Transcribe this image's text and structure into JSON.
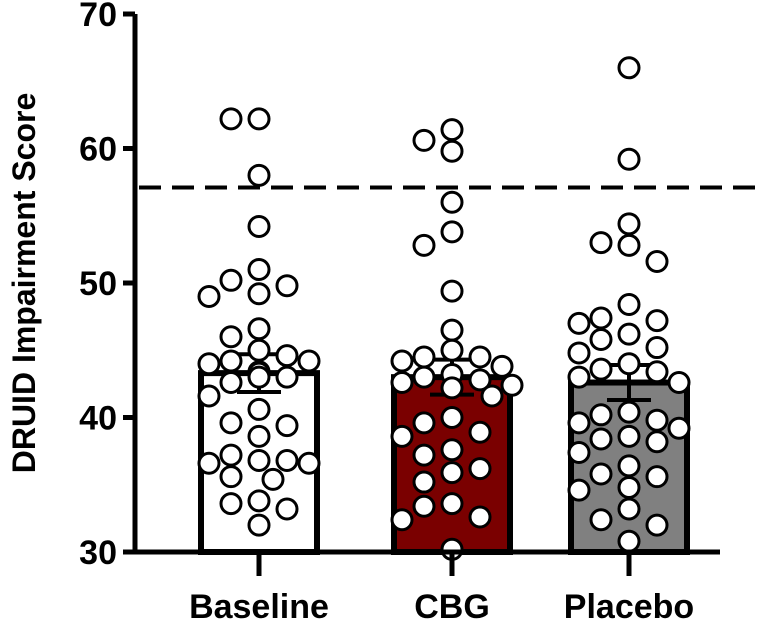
{
  "chart_data": {
    "type": "bar",
    "ylabel": "DRUID Impairment Score",
    "ylim": [
      30,
      70
    ],
    "yticks": [
      30,
      40,
      50,
      60,
      70
    ],
    "categories": [
      "Baseline",
      "CBG",
      "Placebo"
    ],
    "values": [
      43.3,
      43.0,
      42.6
    ],
    "error": [
      1.4,
      1.3,
      1.3
    ],
    "bar_colors": [
      "#ffffff",
      "#7a0000",
      "#808080"
    ],
    "reference_line": 57.1,
    "points": [
      [
        62.2,
        62.2,
        58.0,
        54.2,
        51.0,
        50.2,
        49.8,
        49.2,
        49.0,
        46.6,
        46.0,
        45.0,
        44.6,
        44.2,
        44.0,
        44.2,
        43.4,
        43.3,
        43.0,
        43.0,
        42.6,
        41.6,
        40.6,
        39.6,
        39.4,
        38.6,
        37.2,
        36.8,
        36.8,
        36.6,
        36.6,
        35.6,
        35.4,
        33.8,
        33.6,
        33.2,
        32.0
      ],
      [
        61.4,
        60.6,
        59.8,
        56.0,
        53.8,
        52.8,
        49.4,
        46.5,
        45.0,
        44.5,
        44.5,
        44.2,
        43.8,
        43.2,
        43.0,
        42.8,
        42.6,
        42.4,
        42.2,
        41.6,
        40.0,
        39.6,
        38.9,
        38.6,
        37.6,
        37.2,
        36.2,
        35.9,
        35.2,
        33.6,
        33.4,
        32.6,
        32.4,
        30.2
      ],
      [
        66.0,
        59.2,
        54.4,
        53.0,
        52.8,
        51.6,
        48.4,
        47.4,
        47.2,
        47.0,
        46.2,
        45.8,
        45.2,
        44.8,
        44.0,
        43.6,
        43.4,
        43.0,
        42.6,
        40.4,
        40.2,
        39.8,
        39.6,
        39.2,
        38.6,
        38.4,
        38.2,
        37.4,
        36.4,
        35.8,
        35.6,
        34.8,
        34.6,
        33.2,
        32.4,
        32.0,
        30.8
      ]
    ]
  }
}
